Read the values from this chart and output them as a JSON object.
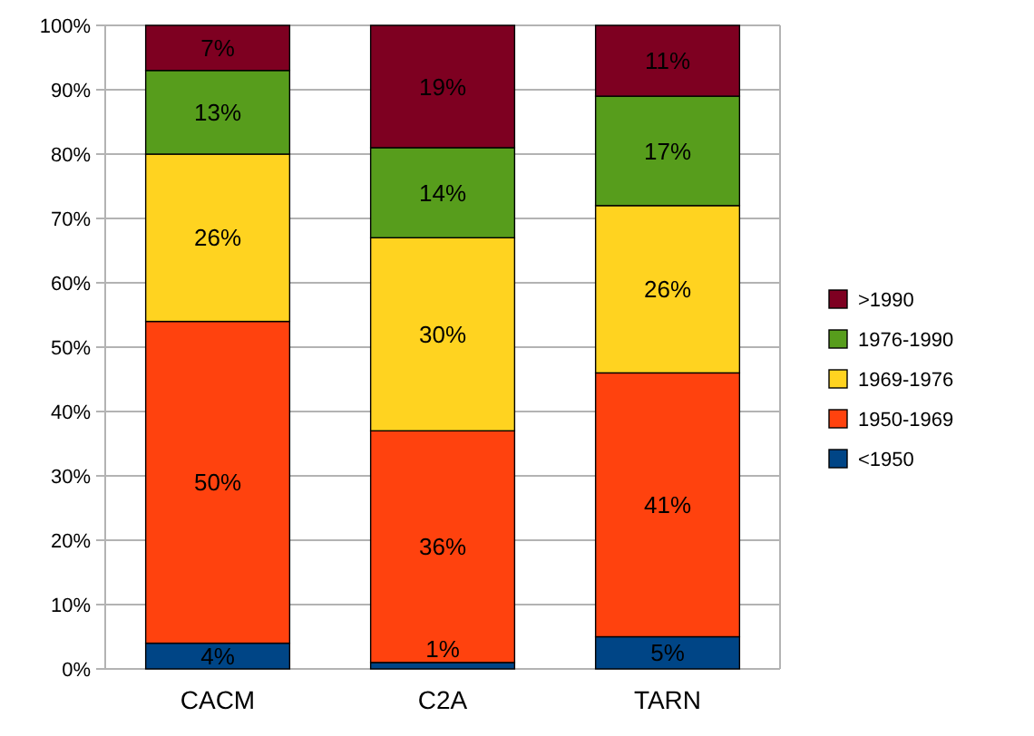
{
  "chart_data": {
    "type": "bar",
    "stacked": true,
    "categories": [
      "CACM",
      "C2A",
      "TARN"
    ],
    "series": [
      {
        "name": "<1950",
        "color": "#004586",
        "values": [
          4,
          1,
          5
        ],
        "value_labels": [
          "4%",
          "1%",
          "5%"
        ]
      },
      {
        "name": "1950-1969",
        "color": "#ff420e",
        "values": [
          50,
          36,
          41
        ],
        "value_labels": [
          "50%",
          "36%",
          "41%"
        ]
      },
      {
        "name": "1969-1976",
        "color": "#ffd320",
        "values": [
          26,
          30,
          26
        ],
        "value_labels": [
          "26%",
          "30%",
          "26%"
        ]
      },
      {
        "name": "1976-1990",
        "color": "#579d1c",
        "values": [
          13,
          14,
          17
        ],
        "value_labels": [
          "13%",
          "14%",
          "17%"
        ]
      },
      {
        "name": ">1990",
        "color": "#7e0021",
        "values": [
          7,
          19,
          11
        ],
        "value_labels": [
          "7%",
          "19%",
          "11%"
        ]
      }
    ],
    "ylim": [
      0,
      100
    ],
    "yticks": [
      {
        "value": 0,
        "label": "0%"
      },
      {
        "value": 10,
        "label": "10%"
      },
      {
        "value": 20,
        "label": "20%"
      },
      {
        "value": 30,
        "label": "30%"
      },
      {
        "value": 40,
        "label": "40%"
      },
      {
        "value": 50,
        "label": "50%"
      },
      {
        "value": 60,
        "label": "60%"
      },
      {
        "value": 70,
        "label": "70%"
      },
      {
        "value": 80,
        "label": "80%"
      },
      {
        "value": 90,
        "label": "90%"
      },
      {
        "value": 100,
        "label": "100%"
      }
    ],
    "grid": "y",
    "legend": "right"
  }
}
